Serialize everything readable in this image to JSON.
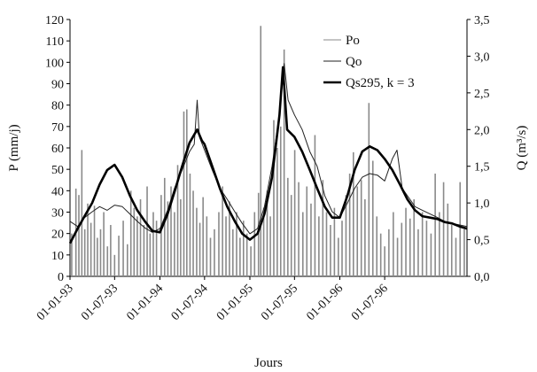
{
  "chart_data": {
    "type": "line",
    "xlabel": "Jours",
    "ylabel_left": "P (mm/j)",
    "ylabel_right": "Q (m³/s)",
    "ylim_left": [
      0,
      120
    ],
    "ylim_right": [
      0,
      3.5
    ],
    "x_range": [
      "1993-01-01",
      "1997-05-31"
    ],
    "yticks_left": [
      "0",
      "10",
      "20",
      "30",
      "40",
      "50",
      "60",
      "70",
      "80",
      "90",
      "100",
      "110",
      "120"
    ],
    "yticks_right": [
      "0,0",
      "0,5",
      "1,0",
      "1,5",
      "2,0",
      "2,5",
      "3,0",
      "3,5"
    ],
    "xticks": [
      {
        "label": "01-01-93",
        "date": "1993-01-01"
      },
      {
        "label": "01-07-93",
        "date": "1993-07-01"
      },
      {
        "label": "01-01-94",
        "date": "1994-01-01"
      },
      {
        "label": "01-07-94",
        "date": "1994-07-01"
      },
      {
        "label": "01-01-95",
        "date": "1995-01-01"
      },
      {
        "label": "01-07-95",
        "date": "1995-07-01"
      },
      {
        "label": "01-01-96",
        "date": "1996-01-01"
      },
      {
        "label": "01-07-96",
        "date": "1996-07-01"
      }
    ],
    "grid": false,
    "legend_position": "top-right",
    "series": [
      {
        "name": "Po",
        "type": "bar",
        "axis": "left",
        "color": "#8a8a8a",
        "points": [
          [
            "1993-01-08",
            20
          ],
          [
            "1993-01-25",
            41
          ],
          [
            "1993-02-06",
            38
          ],
          [
            "1993-02-18",
            59
          ],
          [
            "1993-03-02",
            22
          ],
          [
            "1993-03-14",
            34
          ],
          [
            "1993-03-27",
            25
          ],
          [
            "1993-04-10",
            33
          ],
          [
            "1993-04-22",
            18
          ],
          [
            "1993-05-05",
            22
          ],
          [
            "1993-05-18",
            30
          ],
          [
            "1993-06-02",
            14
          ],
          [
            "1993-06-15",
            24
          ],
          [
            "1993-07-01",
            10
          ],
          [
            "1993-07-18",
            19
          ],
          [
            "1993-08-05",
            26
          ],
          [
            "1993-08-22",
            15
          ],
          [
            "1993-09-05",
            40
          ],
          [
            "1993-09-18",
            32
          ],
          [
            "1993-10-01",
            28
          ],
          [
            "1993-10-14",
            36
          ],
          [
            "1993-10-28",
            24
          ],
          [
            "1993-11-10",
            42
          ],
          [
            "1993-11-22",
            20
          ],
          [
            "1993-12-05",
            30
          ],
          [
            "1993-12-18",
            26
          ],
          [
            "1994-01-06",
            38
          ],
          [
            "1994-01-20",
            46
          ],
          [
            "1994-02-02",
            35
          ],
          [
            "1994-02-15",
            42
          ],
          [
            "1994-03-01",
            30
          ],
          [
            "1994-03-14",
            52
          ],
          [
            "1994-03-26",
            36
          ],
          [
            "1994-04-08",
            77
          ],
          [
            "1994-04-20",
            78
          ],
          [
            "1994-05-03",
            48
          ],
          [
            "1994-05-16",
            40
          ],
          [
            "1994-05-30",
            32
          ],
          [
            "1994-06-12",
            25
          ],
          [
            "1994-06-25",
            37
          ],
          [
            "1994-07-10",
            28
          ],
          [
            "1994-07-25",
            18
          ],
          [
            "1994-08-10",
            22
          ],
          [
            "1994-08-28",
            30
          ],
          [
            "1994-09-12",
            42
          ],
          [
            "1994-09-26",
            28
          ],
          [
            "1994-10-10",
            35
          ],
          [
            "1994-10-24",
            22
          ],
          [
            "1994-11-08",
            30
          ],
          [
            "1994-11-22",
            18
          ],
          [
            "1994-12-06",
            26
          ],
          [
            "1994-12-20",
            20
          ],
          [
            "1995-01-05",
            14
          ],
          [
            "1995-01-20",
            30
          ],
          [
            "1995-02-05",
            39
          ],
          [
            "1995-02-14",
            117
          ],
          [
            "1995-02-26",
            32
          ],
          [
            "1995-03-12",
            40
          ],
          [
            "1995-03-25",
            28
          ],
          [
            "1995-04-08",
            73
          ],
          [
            "1995-04-22",
            60
          ],
          [
            "1995-05-06",
            70
          ],
          [
            "1995-05-20",
            106
          ],
          [
            "1995-06-04",
            46
          ],
          [
            "1995-06-18",
            38
          ],
          [
            "1995-07-02",
            59
          ],
          [
            "1995-07-18",
            44
          ],
          [
            "1995-08-04",
            30
          ],
          [
            "1995-08-20",
            42
          ],
          [
            "1995-09-06",
            34
          ],
          [
            "1995-09-22",
            66
          ],
          [
            "1995-10-08",
            28
          ],
          [
            "1995-10-24",
            45
          ],
          [
            "1995-11-08",
            30
          ],
          [
            "1995-11-24",
            24
          ],
          [
            "1995-12-10",
            32
          ],
          [
            "1995-12-26",
            18
          ],
          [
            "1996-01-10",
            26
          ],
          [
            "1996-01-26",
            38
          ],
          [
            "1996-02-10",
            48
          ],
          [
            "1996-02-25",
            58
          ],
          [
            "1996-03-12",
            42
          ],
          [
            "1996-03-28",
            45
          ],
          [
            "1996-04-12",
            36
          ],
          [
            "1996-04-28",
            81
          ],
          [
            "1996-05-14",
            54
          ],
          [
            "1996-05-30",
            28
          ],
          [
            "1996-06-15",
            20
          ],
          [
            "1996-07-01",
            14
          ],
          [
            "1996-07-18",
            22
          ],
          [
            "1996-08-05",
            30
          ],
          [
            "1996-08-22",
            18
          ],
          [
            "1996-09-08",
            25
          ],
          [
            "1996-09-25",
            32
          ],
          [
            "1996-10-12",
            27
          ],
          [
            "1996-10-28",
            36
          ],
          [
            "1996-11-14",
            22
          ],
          [
            "1996-12-01",
            30
          ],
          [
            "1996-12-18",
            26
          ],
          [
            "1997-01-05",
            20
          ],
          [
            "1997-01-22",
            48
          ],
          [
            "1997-02-08",
            30
          ],
          [
            "1997-02-25",
            44
          ],
          [
            "1997-03-14",
            34
          ],
          [
            "1997-03-30",
            24
          ],
          [
            "1997-04-16",
            18
          ],
          [
            "1997-05-03",
            44
          ],
          [
            "1997-05-20",
            22
          ]
        ]
      },
      {
        "name": "Qo",
        "type": "line",
        "axis": "right",
        "color": "#222222",
        "points": [
          [
            "1993-01-01",
            0.75
          ],
          [
            "1993-02-01",
            0.68
          ],
          [
            "1993-03-01",
            0.8
          ],
          [
            "1993-04-01",
            0.88
          ],
          [
            "1993-05-01",
            0.95
          ],
          [
            "1993-06-01",
            0.9
          ],
          [
            "1993-07-01",
            0.97
          ],
          [
            "1993-08-01",
            0.95
          ],
          [
            "1993-09-01",
            0.85
          ],
          [
            "1993-10-01",
            0.75
          ],
          [
            "1993-11-01",
            0.66
          ],
          [
            "1993-12-01",
            0.6
          ],
          [
            "1994-01-01",
            0.65
          ],
          [
            "1994-02-01",
            0.9
          ],
          [
            "1994-03-01",
            1.2
          ],
          [
            "1994-04-01",
            1.45
          ],
          [
            "1994-05-01",
            1.7
          ],
          [
            "1994-05-20",
            1.8
          ],
          [
            "1994-06-01",
            2.4
          ],
          [
            "1994-06-10",
            1.9
          ],
          [
            "1994-07-01",
            1.72
          ],
          [
            "1994-08-01",
            1.45
          ],
          [
            "1994-09-01",
            1.2
          ],
          [
            "1994-10-01",
            1.05
          ],
          [
            "1994-11-01",
            0.88
          ],
          [
            "1994-12-01",
            0.72
          ],
          [
            "1995-01-01",
            0.58
          ],
          [
            "1995-02-01",
            0.65
          ],
          [
            "1995-03-01",
            0.95
          ],
          [
            "1995-04-01",
            1.5
          ],
          [
            "1995-05-01",
            2.2
          ],
          [
            "1995-05-20",
            2.9
          ],
          [
            "1995-06-05",
            2.4
          ],
          [
            "1995-07-01",
            2.2
          ],
          [
            "1995-08-01",
            2.0
          ],
          [
            "1995-09-01",
            1.7
          ],
          [
            "1995-10-01",
            1.5
          ],
          [
            "1995-11-01",
            1.1
          ],
          [
            "1995-12-01",
            0.88
          ],
          [
            "1996-01-01",
            0.8
          ],
          [
            "1996-02-01",
            1.0
          ],
          [
            "1996-03-01",
            1.2
          ],
          [
            "1996-04-01",
            1.35
          ],
          [
            "1996-05-01",
            1.4
          ],
          [
            "1996-06-01",
            1.38
          ],
          [
            "1996-07-01",
            1.3
          ],
          [
            "1996-08-01",
            1.6
          ],
          [
            "1996-08-20",
            1.72
          ],
          [
            "1996-09-10",
            1.2
          ],
          [
            "1996-10-01",
            1.1
          ],
          [
            "1996-11-01",
            0.95
          ],
          [
            "1996-12-01",
            0.9
          ],
          [
            "1997-01-01",
            0.85
          ],
          [
            "1997-02-01",
            0.8
          ],
          [
            "1997-03-01",
            0.75
          ],
          [
            "1997-04-01",
            0.72
          ],
          [
            "1997-05-01",
            0.7
          ],
          [
            "1997-05-31",
            0.68
          ]
        ]
      },
      {
        "name": "Qs295, k = 3",
        "type": "line",
        "axis": "right",
        "color": "#000000",
        "points": [
          [
            "1993-01-01",
            0.45
          ],
          [
            "1993-02-01",
            0.65
          ],
          [
            "1993-03-01",
            0.82
          ],
          [
            "1993-04-01",
            1.0
          ],
          [
            "1993-05-01",
            1.25
          ],
          [
            "1993-06-01",
            1.45
          ],
          [
            "1993-07-01",
            1.52
          ],
          [
            "1993-08-01",
            1.35
          ],
          [
            "1993-09-01",
            1.1
          ],
          [
            "1993-10-01",
            0.9
          ],
          [
            "1993-11-01",
            0.75
          ],
          [
            "1993-12-01",
            0.62
          ],
          [
            "1994-01-01",
            0.6
          ],
          [
            "1994-02-01",
            0.85
          ],
          [
            "1994-03-01",
            1.15
          ],
          [
            "1994-04-01",
            1.5
          ],
          [
            "1994-05-01",
            1.82
          ],
          [
            "1994-06-01",
            2.0
          ],
          [
            "1994-06-20",
            1.85
          ],
          [
            "1994-07-01",
            1.8
          ],
          [
            "1994-08-01",
            1.5
          ],
          [
            "1994-09-01",
            1.2
          ],
          [
            "1994-10-01",
            0.95
          ],
          [
            "1994-11-01",
            0.75
          ],
          [
            "1994-12-01",
            0.58
          ],
          [
            "1995-01-01",
            0.5
          ],
          [
            "1995-02-01",
            0.58
          ],
          [
            "1995-03-01",
            0.85
          ],
          [
            "1995-04-01",
            1.35
          ],
          [
            "1995-05-01",
            2.2
          ],
          [
            "1995-05-15",
            2.85
          ],
          [
            "1995-06-01",
            2.0
          ],
          [
            "1995-07-01",
            1.9
          ],
          [
            "1995-08-01",
            1.7
          ],
          [
            "1995-09-01",
            1.45
          ],
          [
            "1995-10-01",
            1.2
          ],
          [
            "1995-11-01",
            0.95
          ],
          [
            "1995-12-01",
            0.8
          ],
          [
            "1996-01-01",
            0.8
          ],
          [
            "1996-02-01",
            1.1
          ],
          [
            "1996-03-01",
            1.45
          ],
          [
            "1996-04-01",
            1.7
          ],
          [
            "1996-05-01",
            1.77
          ],
          [
            "1996-06-01",
            1.72
          ],
          [
            "1996-07-01",
            1.6
          ],
          [
            "1996-08-01",
            1.45
          ],
          [
            "1996-09-01",
            1.25
          ],
          [
            "1996-10-01",
            1.05
          ],
          [
            "1996-11-01",
            0.9
          ],
          [
            "1996-12-01",
            0.82
          ],
          [
            "1997-01-01",
            0.8
          ],
          [
            "1997-02-01",
            0.78
          ],
          [
            "1997-03-01",
            0.74
          ],
          [
            "1997-04-01",
            0.72
          ],
          [
            "1997-05-01",
            0.68
          ],
          [
            "1997-05-31",
            0.65
          ]
        ]
      }
    ]
  }
}
